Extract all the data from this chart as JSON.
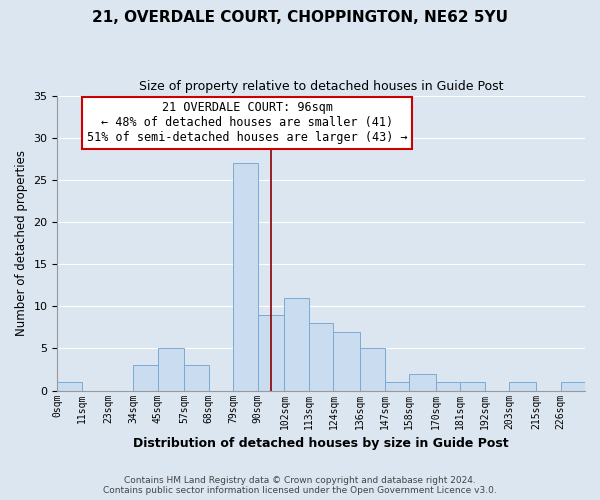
{
  "title": "21, OVERDALE COURT, CHOPPINGTON, NE62 5YU",
  "subtitle": "Size of property relative to detached houses in Guide Post",
  "xlabel": "Distribution of detached houses by size in Guide Post",
  "ylabel": "Number of detached properties",
  "footer_line1": "Contains HM Land Registry data © Crown copyright and database right 2024.",
  "footer_line2": "Contains public sector information licensed under the Open Government Licence v3.0.",
  "bin_labels": [
    "0sqm",
    "11sqm",
    "23sqm",
    "34sqm",
    "45sqm",
    "57sqm",
    "68sqm",
    "79sqm",
    "90sqm",
    "102sqm",
    "113sqm",
    "124sqm",
    "136sqm",
    "147sqm",
    "158sqm",
    "170sqm",
    "181sqm",
    "192sqm",
    "203sqm",
    "215sqm",
    "226sqm"
  ],
  "bar_heights": [
    1,
    0,
    0,
    3,
    5,
    3,
    0,
    27,
    9,
    11,
    8,
    7,
    5,
    1,
    2,
    1,
    1,
    0,
    1,
    0,
    1
  ],
  "bar_color": "#c9dcf0",
  "bar_edge_color": "#7baad4",
  "property_line_x": 96,
  "property_line_color": "#8b0000",
  "annotation_title": "21 OVERDALE COURT: 96sqm",
  "annotation_line1": "← 48% of detached houses are smaller (41)",
  "annotation_line2": "51% of semi-detached houses are larger (43) →",
  "annotation_box_facecolor": "#ffffff",
  "annotation_box_edgecolor": "#cc0000",
  "ylim": [
    0,
    35
  ],
  "yticks": [
    0,
    5,
    10,
    15,
    20,
    25,
    30,
    35
  ],
  "bin_edges": [
    0,
    11,
    23,
    34,
    45,
    57,
    68,
    79,
    90,
    102,
    113,
    124,
    136,
    147,
    158,
    170,
    181,
    192,
    203,
    215,
    226,
    237
  ],
  "grid_color": "#ffffff",
  "background_color": "#dce6f0"
}
